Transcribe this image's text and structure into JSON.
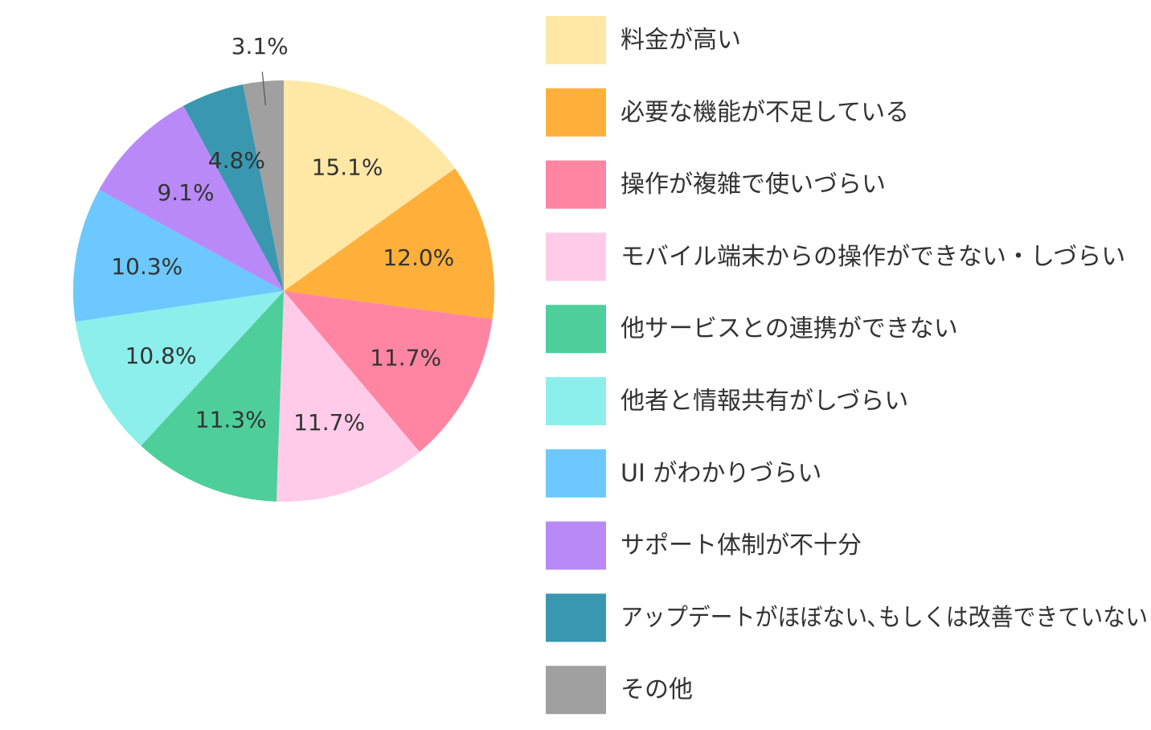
{
  "chart_data": {
    "type": "pie",
    "categories": [
      "料金が高い",
      "必要な機能が不足している",
      "操作が複雑で使いづらい",
      "モバイル端末からの操作ができない・しづらい",
      "他サービスとの連携ができない",
      "他者と情報共有がしづらい",
      "UI がわかりづらい",
      "サポート体制が不十分",
      "アップデートがほぼない､もしくは改善できていない",
      "その他"
    ],
    "values": [
      15.1,
      12.0,
      11.7,
      11.7,
      11.3,
      10.8,
      10.3,
      9.1,
      4.8,
      3.1
    ],
    "labels": [
      "15.1%",
      "12.0%",
      "11.7%",
      "11.7%",
      "11.3%",
      "10.8%",
      "10.3%",
      "9.1%",
      "4.8%",
      "3.1%"
    ],
    "colors": [
      "#FFE8A6",
      "#FFB03B",
      "#FF85A2",
      "#FFCBE8",
      "#4ECE9B",
      "#8CEFEC",
      "#6CC8FF",
      "#B98AF7",
      "#3998B0",
      "#A0A0A0"
    ],
    "legend_position": "right",
    "start": "top",
    "direction": "clockwise"
  }
}
